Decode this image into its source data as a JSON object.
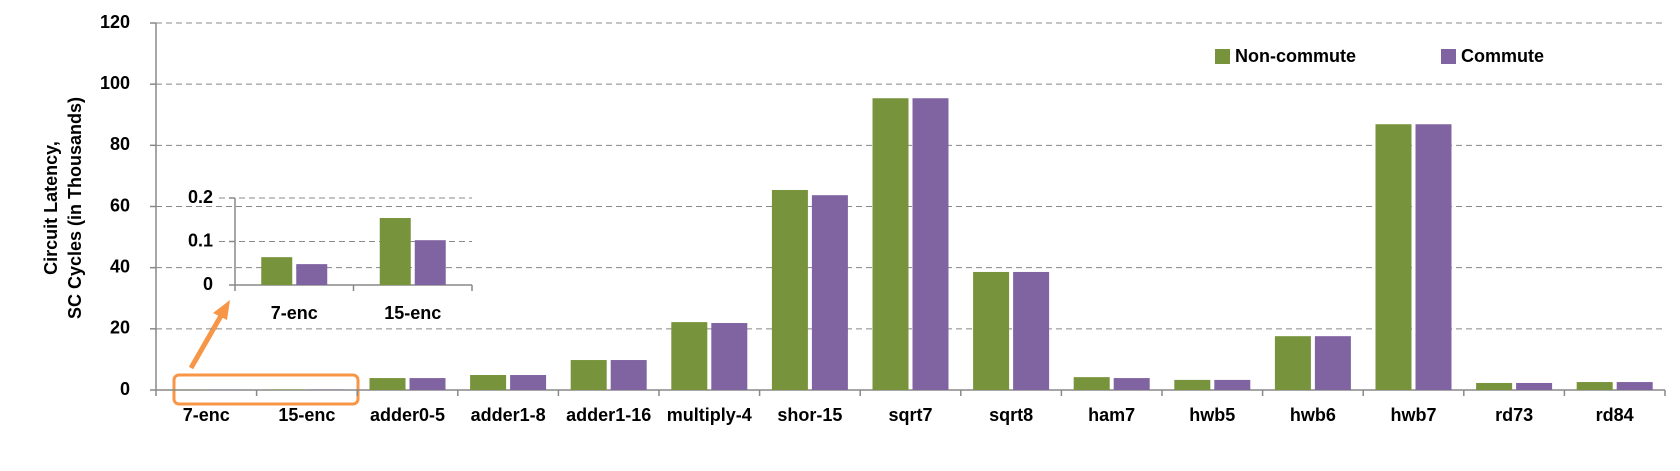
{
  "chart_data": [
    {
      "type": "bar",
      "ylabel": [
        "Circuit Latency,",
        "SC Cycles (in Thousands)"
      ],
      "categories": [
        "7-enc",
        "15-enc",
        "adder0-5",
        "adder1-8",
        "adder1-16",
        "multiply-4",
        "shor-15",
        "sqrt7",
        "sqrt8",
        "ham7",
        "hwb5",
        "hwb6",
        "hwb7",
        "rd73",
        "rd84"
      ],
      "series": [
        {
          "name": "Non-commute",
          "color": "#77933c",
          "values": [
            0.064,
            0.154,
            3.9,
            4.9,
            9.8,
            22.2,
            65.4,
            95.4,
            38.6,
            4.2,
            3.3,
            17.6,
            86.9,
            2.3,
            2.6
          ]
        },
        {
          "name": "Commute",
          "color": "#8064a2",
          "values": [
            0.048,
            0.103,
            3.9,
            4.9,
            9.8,
            21.9,
            63.7,
            95.4,
            38.6,
            3.9,
            3.3,
            17.6,
            86.9,
            2.3,
            2.6
          ]
        }
      ],
      "ylim": [
        0,
        120
      ],
      "yticks": [
        0,
        20,
        40,
        60,
        80,
        100,
        120
      ],
      "grid": true,
      "legend": "upper right"
    },
    {
      "type": "bar",
      "categories": [
        "7-enc",
        "15-enc"
      ],
      "series": [
        {
          "name": "Non-commute",
          "color": "#77933c",
          "values": [
            0.064,
            0.154
          ]
        },
        {
          "name": "Commute",
          "color": "#8064a2",
          "values": [
            0.048,
            0.103
          ]
        }
      ],
      "ylim": [
        0,
        0.2
      ],
      "yticks": [
        0,
        0.1,
        0.2
      ],
      "grid": true
    }
  ]
}
